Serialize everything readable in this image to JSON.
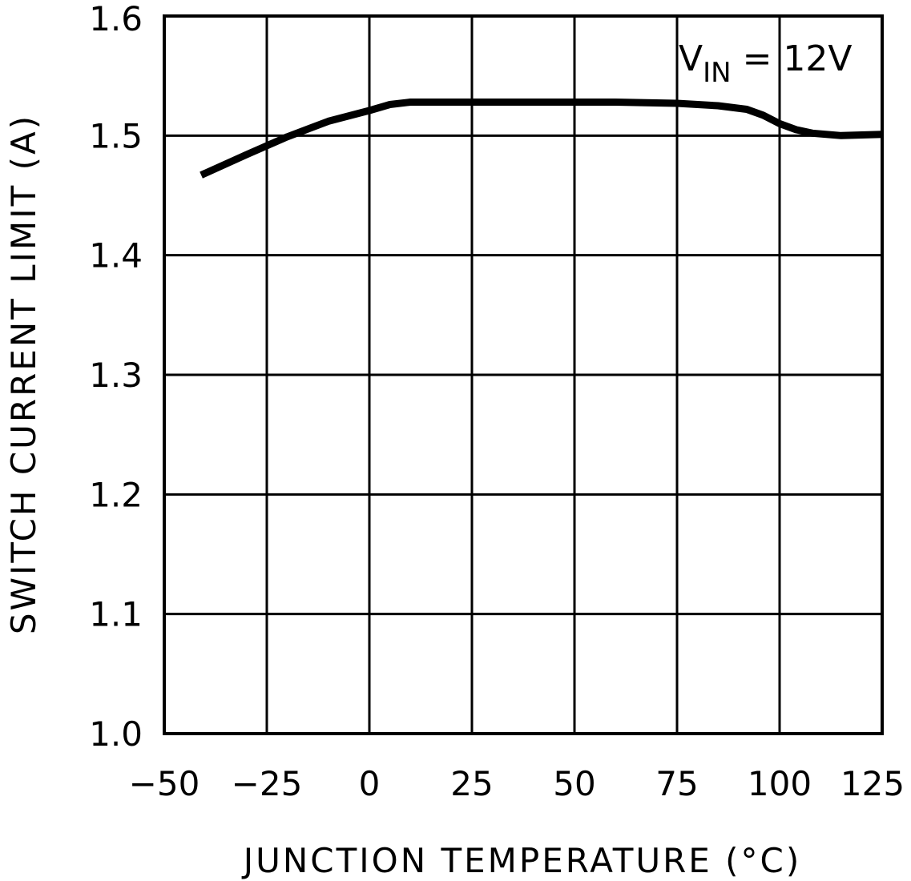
{
  "chart_data": {
    "type": "line",
    "xlabel": "JUNCTION TEMPERATURE (°C)",
    "ylabel": "SWITCH CURRENT LIMIT (A)",
    "xlim": [
      -50,
      125
    ],
    "ylim": [
      1.0,
      1.6
    ],
    "x_ticks": [
      "−50",
      "−25",
      "0",
      "25",
      "50",
      "75",
      "100",
      "125"
    ],
    "x_tick_values": [
      -50,
      -25,
      0,
      25,
      50,
      75,
      100,
      125
    ],
    "y_ticks": [
      "1.0",
      "1.1",
      "1.2",
      "1.3",
      "1.4",
      "1.5",
      "1.6"
    ],
    "y_tick_values": [
      1.0,
      1.1,
      1.2,
      1.3,
      1.4,
      1.5,
      1.6
    ],
    "grid": true,
    "annotation": {
      "main": "V",
      "sub": "IN",
      "rest": " = 12V"
    },
    "series": [
      {
        "x": [
          -41,
          -30,
          -20,
          -10,
          0,
          5,
          10,
          25,
          50,
          60,
          75,
          85,
          92,
          96,
          100,
          104,
          108,
          115,
          125
        ],
        "y": [
          1.467,
          1.484,
          1.499,
          1.512,
          1.521,
          1.526,
          1.528,
          1.528,
          1.528,
          1.528,
          1.527,
          1.525,
          1.522,
          1.517,
          1.51,
          1.505,
          1.502,
          1.5,
          1.501
        ]
      }
    ],
    "line_color": "#000000"
  }
}
